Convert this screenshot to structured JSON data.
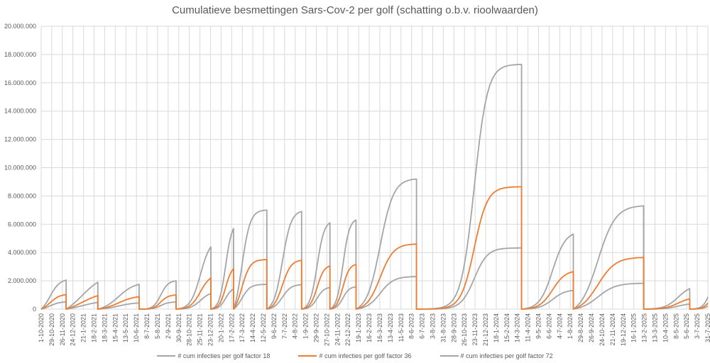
{
  "chart_data": {
    "type": "line",
    "title": "Cumulatieve besmettingen Sars-Cov-2 per golf (schatting o.b.v. rioolwaarden)",
    "xlabel": "",
    "ylabel": "",
    "ylim": [
      0,
      20000000
    ],
    "y_ticks": [
      "0",
      "2.000.000",
      "4.000.000",
      "6.000.000",
      "8.000.000",
      "10.000.000",
      "12.000.000",
      "14.000.000",
      "16.000.000",
      "18.000.000",
      "20.000.000"
    ],
    "x_ticks": [
      "1-10-2020",
      "29-10-2020",
      "26-11-2020",
      "24-12-2020",
      "21-1-2021",
      "18-2-2021",
      "18-3-2021",
      "15-4-2021",
      "13-5-2021",
      "10-6-2021",
      "8-7-2021",
      "5-8-2021",
      "2-9-2021",
      "30-9-2021",
      "28-10-2021",
      "25-11-2021",
      "23-12-2021",
      "20-1-2022",
      "17-2-2022",
      "17-3-2022",
      "14-4-2022",
      "12-5-2022",
      "9-6-2022",
      "7-7-2022",
      "4-8-2022",
      "1-9-2022",
      "29-9-2022",
      "27-10-2022",
      "24-11-2022",
      "22-12-2022",
      "19-1-2023",
      "16-2-2023",
      "16-3-2023",
      "13-4-2023",
      "11-5-2023",
      "8-6-2023",
      "6-7-2023",
      "3-8-2023",
      "31-8-2023",
      "28-9-2023",
      "26-10-2023",
      "23-11-2023",
      "21-12-2023",
      "18-1-2024",
      "15-2-2024",
      "14-3-2024",
      "11-4-2024",
      "9-5-2024",
      "6-6-2024",
      "4-7-2024",
      "1-8-2024",
      "29-8-2024",
      "26-9-2024",
      "24-10-2024",
      "21-11-2024",
      "19-12-2024",
      "16-1-2025",
      "13-2-2025",
      "13-3-2025",
      "10-4-2025",
      "8-5-2025",
      "5-6-2025",
      "3-7-2025",
      "31-7-2025"
    ],
    "grid": true,
    "legend_position": "bottom",
    "series": [
      {
        "name": "# cum infecties per golf factor 18",
        "color": "#A5A5A5"
      },
      {
        "name": "# cum infecties per golf factor 36",
        "color": "#ED7D31"
      },
      {
        "name": "# cum infecties per golf factor 72",
        "color": "#A5A5A5"
      }
    ],
    "waves": [
      {
        "start": "1-10-2020",
        "end": "6-12-2020",
        "final": [
          512000,
          1025000,
          2050000
        ]
      },
      {
        "start": "6-12-2020",
        "end": "28-2-2021",
        "final": [
          475000,
          950000,
          1900000
        ]
      },
      {
        "start": "28-2-2021",
        "end": "17-6-2021",
        "final": [
          437000,
          875000,
          1750000
        ]
      },
      {
        "start": "4-7-2021",
        "end": "23-9-2021",
        "final": [
          500000,
          1000000,
          2000000
        ]
      },
      {
        "start": "23-9-2021",
        "end": "24-12-2021",
        "final": [
          1100000,
          2200000,
          4400000
        ]
      },
      {
        "start": "24-12-2021",
        "end": "22-2-2022",
        "final": [
          1425000,
          2850000,
          5700000
        ]
      },
      {
        "start": "22-2-2022",
        "end": "21-5-2022",
        "final": [
          1750000,
          3500000,
          7000000
        ]
      },
      {
        "start": "21-5-2022",
        "end": "21-8-2022",
        "final": [
          1725000,
          3450000,
          6900000
        ]
      },
      {
        "start": "21-8-2022",
        "end": "4-11-2022",
        "final": [
          1525000,
          3050000,
          6100000
        ]
      },
      {
        "start": "4-11-2022",
        "end": "12-1-2023",
        "final": [
          1575000,
          3150000,
          6300000
        ]
      },
      {
        "start": "12-1-2023",
        "end": "21-6-2023",
        "final": [
          2300000,
          4600000,
          9200000
        ]
      },
      {
        "start": "21-6-2023",
        "end": "25-3-2024",
        "final": [
          4325000,
          8650000,
          17300000
        ]
      },
      {
        "start": "25-3-2024",
        "end": "9-8-2024",
        "final": [
          1325000,
          2650000,
          5300000
        ]
      },
      {
        "start": "9-8-2024",
        "end": "11-2-2025",
        "final": [
          1825000,
          3650000,
          7300000
        ]
      },
      {
        "start": "11-2-2025",
        "end": "13-6-2025",
        "final": [
          362000,
          725000,
          1450000
        ]
      },
      {
        "start": "13-6-2025",
        "end": "31-7-2025",
        "final": [
          212000,
          425000,
          850000
        ]
      }
    ]
  }
}
